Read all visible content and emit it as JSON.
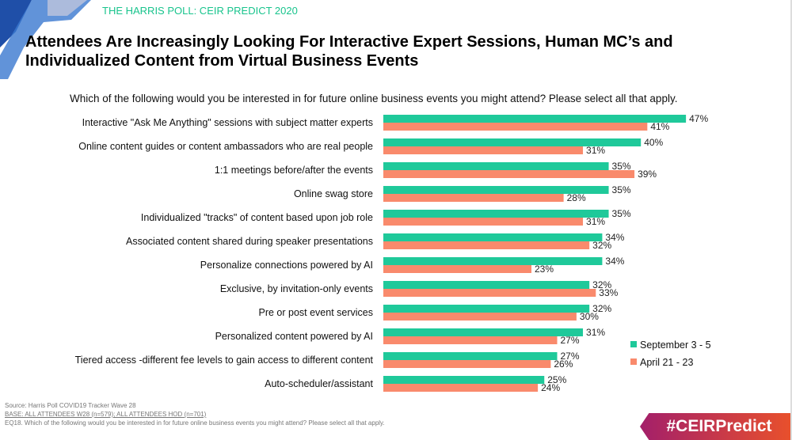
{
  "header": {
    "kicker": "THE HARRIS POLL: CEIR PREDICT 2020",
    "title": "Attendees Are Increasingly Looking For Interactive Expert Sessions, Human MC’s and Individualized Content from Virtual Business Events"
  },
  "footer": {
    "source": "Source: Harris Poll COVID19 Tracker Wave 28",
    "base": "BASE: ALL ATTENDEES  W28 (n=579); ALL ATTENDEES HOD (n=701)",
    "note": "EQ18. Which of the following would you be interested in for future online business events you might attend? Please select all that apply.",
    "hashtag": "#CEIRPredict"
  },
  "chart_data": {
    "type": "bar",
    "orientation": "horizontal",
    "title": "Which of the following would you be interested in for future online business events you might attend? Please select all that apply.",
    "categories": [
      "Interactive \"Ask Me Anything\" sessions with subject matter experts",
      "Online content guides or content ambassadors who are real people",
      "1:1 meetings before/after the events",
      "Online swag store",
      "Individualized \"tracks\" of content based upon job role",
      "Associated content shared during speaker presentations",
      "Personalize connections powered by AI",
      "Exclusive, by invitation-only events",
      "Pre or post event services",
      "Personalized content powered by AI",
      "Tiered access -different fee levels to gain access to different content",
      "Auto-scheduler/assistant"
    ],
    "series": [
      {
        "name": "September 3 - 5",
        "color": "#1fc99a",
        "values": [
          47,
          40,
          35,
          35,
          35,
          34,
          34,
          32,
          32,
          31,
          27,
          25
        ]
      },
      {
        "name": "April 21 - 23",
        "color": "#f98a6c",
        "values": [
          41,
          31,
          39,
          28,
          31,
          32,
          23,
          33,
          30,
          27,
          26,
          24
        ]
      }
    ],
    "unit": "%",
    "legend": "bottom-right"
  }
}
